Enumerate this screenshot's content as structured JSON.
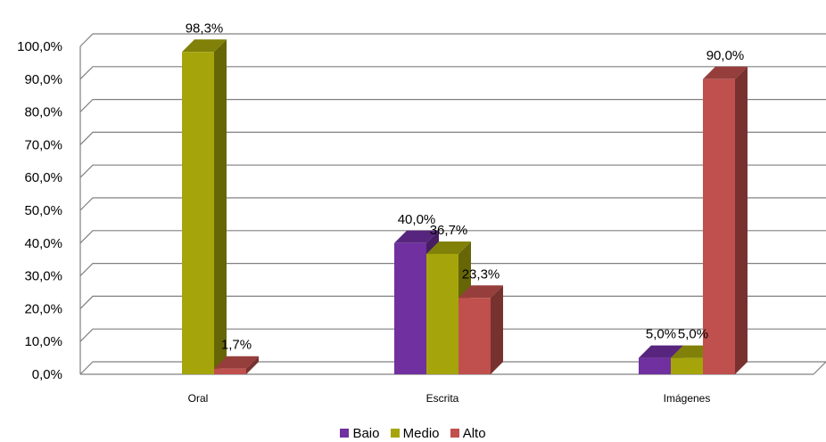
{
  "chart_data": {
    "type": "bar",
    "categories": [
      "Oral",
      "Escrita",
      "Imágenes"
    ],
    "series": [
      {
        "name": "Baio",
        "color": "#7030A0",
        "values": [
          null,
          40.0,
          5.0
        ],
        "labels": [
          "",
          "40,0%",
          "5,0%"
        ]
      },
      {
        "name": "Medio",
        "color": "#A5A50B",
        "values": [
          98.3,
          36.7,
          5.0
        ],
        "labels": [
          "98,3%",
          "36,7%",
          "5,0%"
        ]
      },
      {
        "name": "Alto",
        "color": "#C0504D",
        "values": [
          1.7,
          23.3,
          90.0
        ],
        "labels": [
          "1,7%",
          "23,3%",
          "90,0%"
        ]
      }
    ],
    "ylim": [
      0,
      100
    ],
    "y_ticks": [
      "0,0%",
      "10,0%",
      "20,0%",
      "30,0%",
      "40,0%",
      "50,0%",
      "60,0%",
      "70,0%",
      "80,0%",
      "90,0%",
      "100,0%"
    ],
    "grid": true,
    "style": "3d-clustered-column",
    "legend_position": "bottom"
  }
}
